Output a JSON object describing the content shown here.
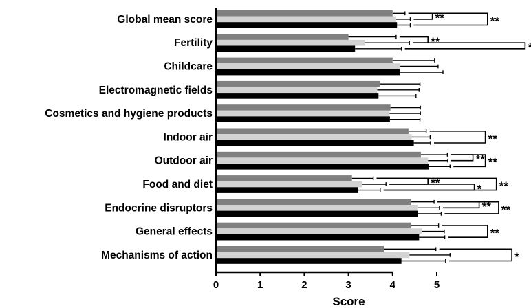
{
  "chart_data": {
    "type": "bar",
    "orientation": "horizontal",
    "xlabel": "Score",
    "xlim": [
      0,
      7
    ],
    "x_ticks": [
      0,
      1,
      2,
      3,
      4,
      5
    ],
    "grid": false,
    "legend": null,
    "series_colors": [
      "#808080",
      "#d3d3d3",
      "#000000"
    ],
    "categories": [
      "Global mean score",
      "Fertility",
      "Childcare",
      "Electromagnetic fields",
      "Cosmetics and hygiene products",
      "Indoor air",
      "Outdoor air",
      "Food and diet",
      "Endocrine disruptors",
      "General effects",
      "Mechanisms of action"
    ],
    "series": [
      {
        "values": [
          4.0,
          3.0,
          4.0,
          3.72,
          3.95,
          4.36,
          4.64,
          3.08,
          4.42,
          4.42,
          3.8
        ],
        "errors": [
          0.28,
          1.08,
          0.95,
          0.9,
          0.68,
          0.4,
          0.6,
          0.48,
          0.52,
          0.62,
          1.18
        ]
      },
      {
        "values": [
          4.08,
          3.38,
          4.17,
          3.65,
          3.93,
          4.43,
          4.8,
          3.3,
          4.56,
          4.67,
          4.38
        ],
        "errors": [
          0.32,
          1.0,
          0.86,
          0.95,
          0.7,
          0.42,
          0.45,
          0.55,
          0.5,
          0.5,
          0.92
        ]
      },
      {
        "values": [
          4.1,
          3.15,
          4.16,
          3.68,
          3.94,
          4.48,
          4.82,
          3.22,
          4.58,
          4.6,
          4.2
        ],
        "errors": [
          0.3,
          1.05,
          0.98,
          0.85,
          0.68,
          0.38,
          0.48,
          0.5,
          0.52,
          0.58,
          1.0
        ]
      }
    ],
    "significance": [
      {
        "category": 0,
        "label": "**",
        "between": [
          0,
          1
        ],
        "end": 4.9
      },
      {
        "category": 0,
        "label": "**",
        "between": [
          0,
          2
        ],
        "end": 6.15
      },
      {
        "category": 1,
        "label": "**",
        "between": [
          0,
          1
        ],
        "end": 4.8
      },
      {
        "category": 1,
        "label": "*",
        "between": [
          1,
          2
        ],
        "end": 7.0
      },
      {
        "category": 5,
        "label": "**",
        "between": [
          0,
          2
        ],
        "end": 6.1
      },
      {
        "category": 6,
        "label": "**",
        "between": [
          0,
          1
        ],
        "end": 5.82
      },
      {
        "category": 6,
        "label": "**",
        "between": [
          0,
          2
        ],
        "end": 6.1
      },
      {
        "category": 7,
        "label": "**",
        "between": [
          0,
          1
        ],
        "end": 4.8
      },
      {
        "category": 7,
        "label": "*",
        "between": [
          1,
          2
        ],
        "end": 5.85
      },
      {
        "category": 7,
        "label": "**",
        "between": [
          0,
          2
        ],
        "end": 6.35
      },
      {
        "category": 8,
        "label": "**",
        "between": [
          0,
          1
        ],
        "end": 5.96
      },
      {
        "category": 8,
        "label": "**",
        "between": [
          0,
          2
        ],
        "end": 6.4
      },
      {
        "category": 9,
        "label": "**",
        "between": [
          0,
          2
        ],
        "end": 6.15
      },
      {
        "category": 10,
        "label": "*",
        "between": [
          0,
          2
        ],
        "end": 6.7
      }
    ]
  }
}
